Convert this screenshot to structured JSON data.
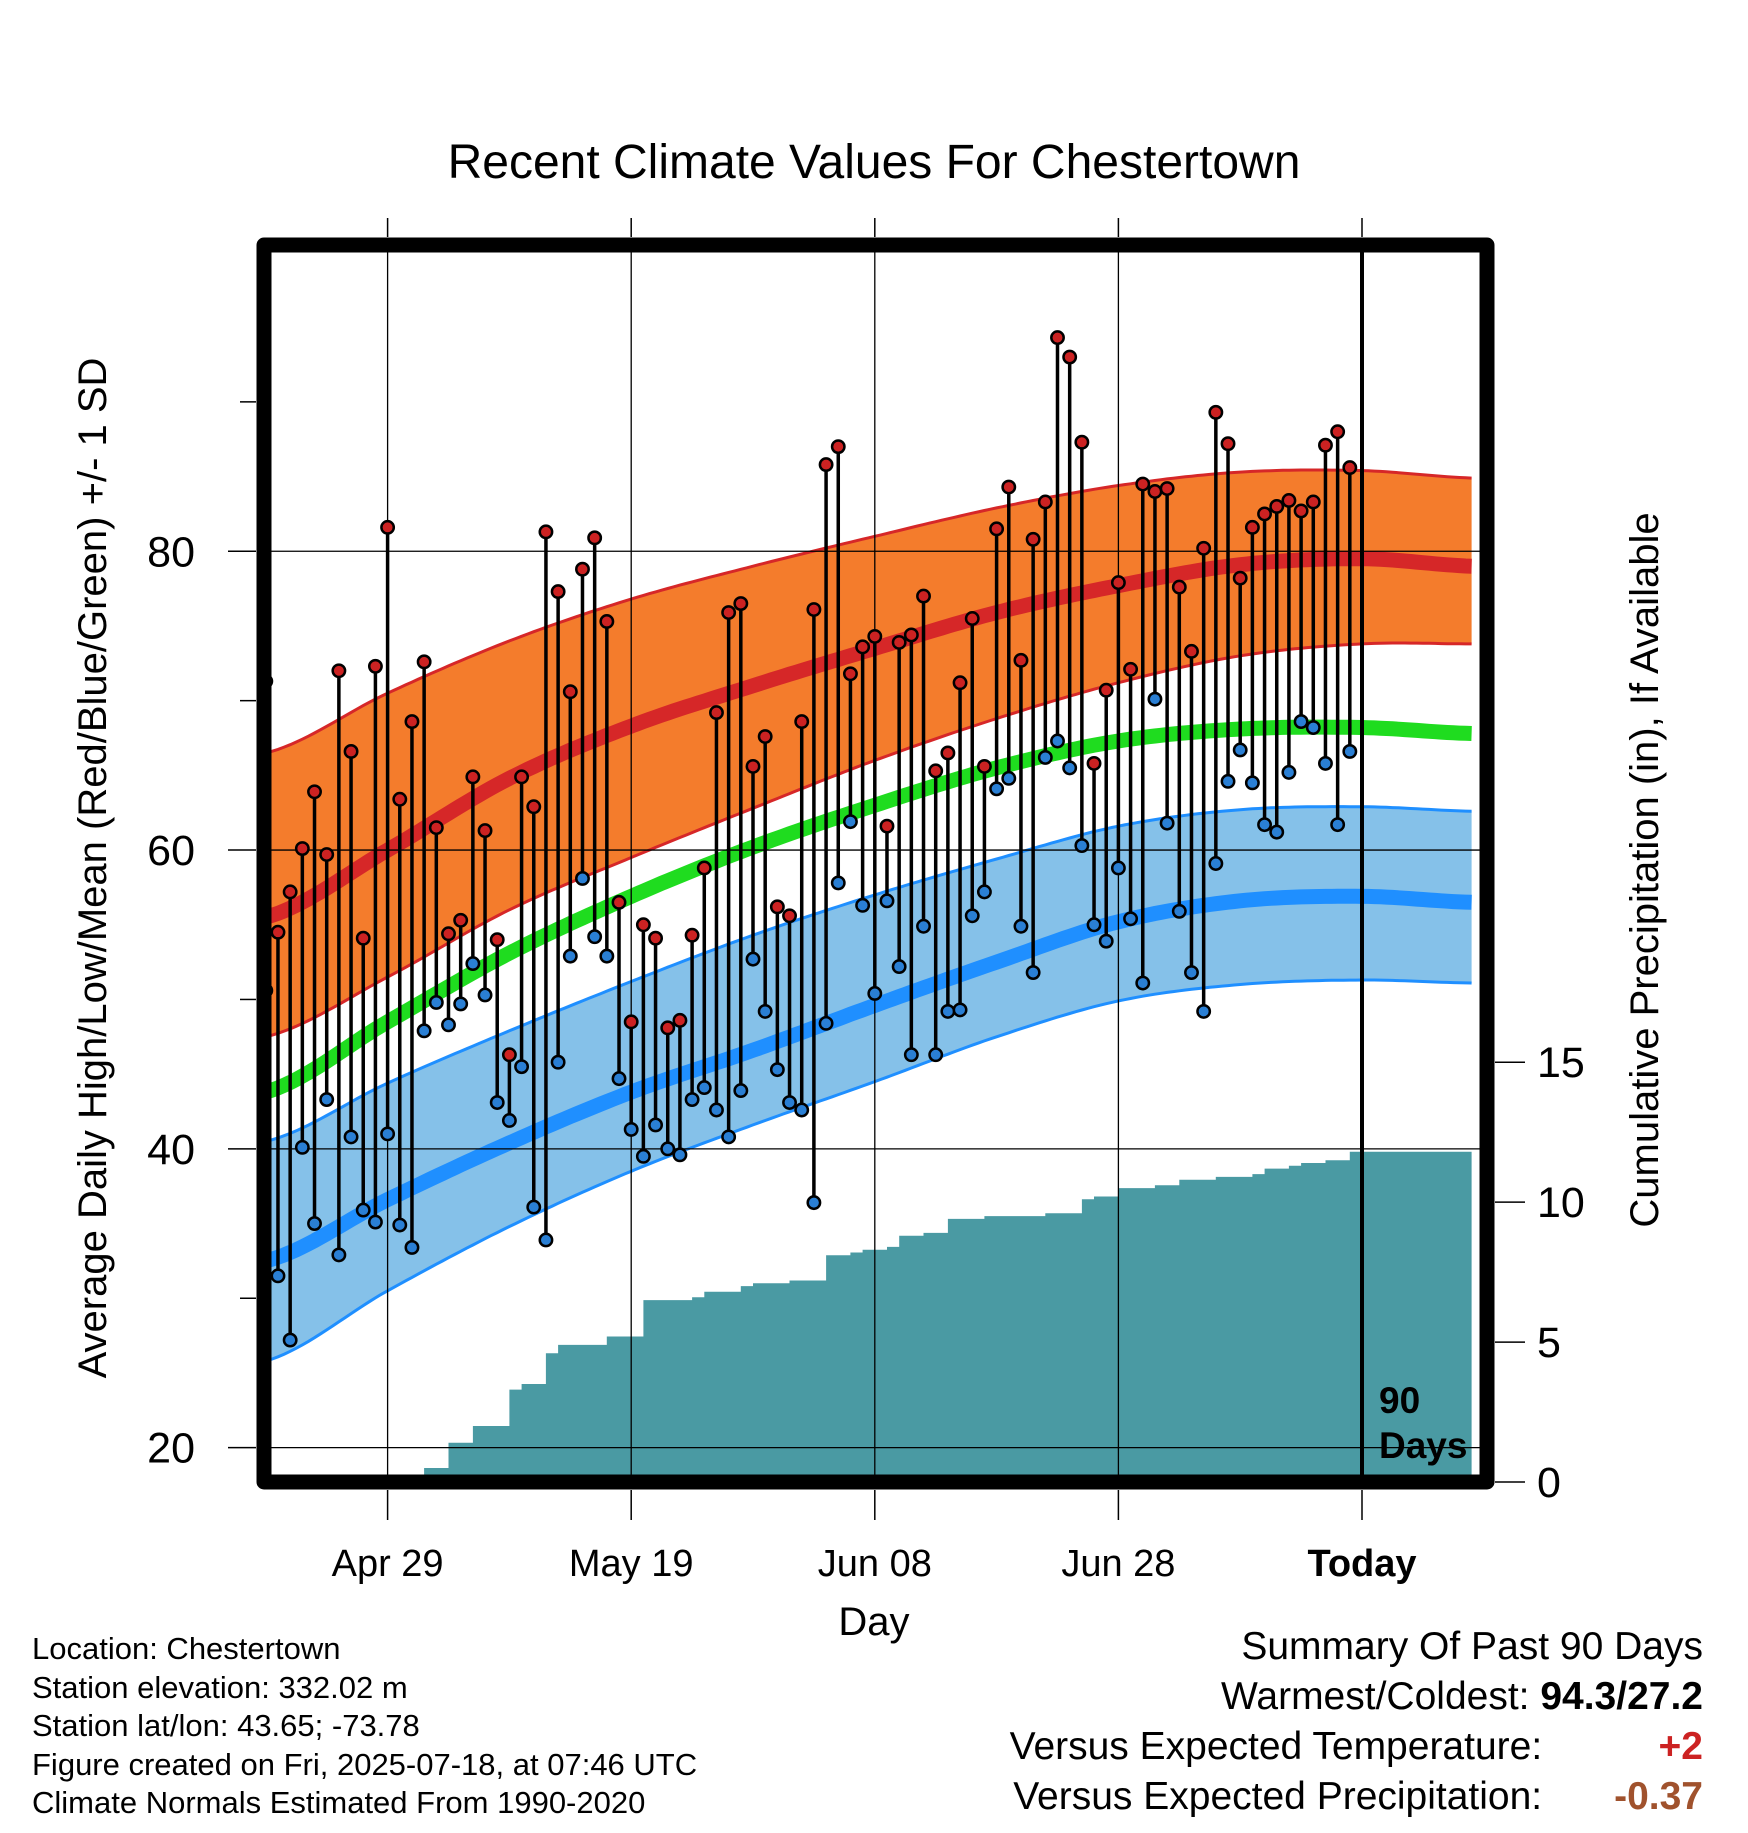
{
  "chart_data": {
    "type": "line",
    "title": "Recent Climate Values For Chestertown",
    "xlabel": "Day",
    "ylabel": "Average Daily High/Low/Mean (Red/Blue/Green) +/- 1 SD",
    "y2label": "Cumulative Precipitation (in), If Available",
    "x_tick_labels": [
      "Apr 29",
      "May 19",
      "Jun 08",
      "Jun 28",
      "Today"
    ],
    "y_ticks": [
      20,
      40,
      60,
      80
    ],
    "y2_ticks": [
      0,
      5,
      10,
      15
    ],
    "ylim": [
      17.7,
      100.5
    ],
    "y2lim": [
      0,
      44.2
    ],
    "days_range": [
      -90,
      9
    ],
    "x_tick_days": [
      -80,
      -60,
      -40,
      -20,
      0
    ],
    "today_marker_label": [
      "90",
      "Days"
    ],
    "grid": true,
    "normals": {
      "days": [
        -90,
        -80,
        -70,
        -60,
        -50,
        -40,
        -30,
        -20,
        -10,
        0,
        9
      ],
      "high_mean": [
        55.5,
        60.0,
        64.8,
        68.3,
        71.0,
        73.5,
        75.9,
        77.7,
        79.1,
        79.5,
        79.0
      ],
      "high_upper": [
        66.5,
        70.5,
        74.0,
        76.8,
        79.0,
        81.0,
        82.9,
        84.4,
        85.3,
        85.4,
        84.9
      ],
      "high_lower": [
        47.5,
        51.5,
        56.0,
        59.5,
        62.8,
        66.0,
        68.8,
        71.2,
        73.0,
        73.8,
        73.8
      ],
      "mean": [
        43.8,
        48.5,
        53.1,
        56.9,
        60.2,
        63.0,
        65.5,
        67.3,
        68.1,
        68.2,
        67.8
      ],
      "low_mean": [
        32.5,
        36.6,
        40.4,
        43.8,
        46.6,
        49.6,
        52.5,
        55.2,
        56.6,
        56.9,
        56.5
      ],
      "low_upper": [
        40.5,
        44.4,
        47.9,
        51.2,
        54.3,
        57.0,
        59.4,
        61.6,
        62.7,
        62.9,
        62.6
      ],
      "low_lower": [
        25.8,
        30.5,
        34.8,
        38.5,
        41.6,
        44.5,
        47.5,
        49.9,
        51.0,
        51.3,
        51.1
      ]
    },
    "daily_high": [
      71.3,
      54.5,
      57.2,
      60.1,
      63.9,
      59.7,
      72.0,
      66.6,
      54.1,
      72.3,
      81.6,
      63.4,
      68.6,
      72.6,
      61.5,
      54.4,
      55.3,
      64.9,
      61.3,
      54.0,
      46.3,
      64.9,
      62.9,
      81.3,
      77.3,
      70.6,
      78.8,
      80.9,
      75.3,
      56.5,
      48.5,
      55.0,
      54.1,
      48.1,
      48.6,
      54.3,
      58.8,
      69.2,
      75.9,
      76.5,
      65.6,
      67.6,
      56.2,
      55.6,
      68.6,
      76.1,
      85.8,
      87.0,
      71.8,
      73.6,
      74.3,
      61.6,
      73.9,
      74.4,
      77.0,
      65.3,
      66.5,
      71.2,
      75.5,
      65.6,
      81.5,
      84.3,
      72.7,
      80.8,
      83.3,
      94.3,
      93.0,
      87.3,
      65.8,
      70.7,
      77.9,
      72.1,
      84.5,
      84.0,
      84.2,
      77.6,
      73.3,
      80.2,
      89.3,
      87.2,
      78.2,
      81.6,
      82.5,
      83.0,
      83.4,
      82.7,
      83.3,
      87.1,
      88.0,
      85.6
    ],
    "daily_low": [
      50.6,
      31.5,
      27.2,
      40.1,
      35.0,
      43.3,
      32.9,
      40.8,
      35.9,
      35.1,
      41.0,
      34.9,
      33.4,
      47.9,
      49.8,
      48.3,
      49.7,
      52.4,
      50.3,
      43.1,
      41.9,
      45.5,
      36.1,
      33.9,
      45.8,
      52.9,
      58.1,
      54.2,
      52.9,
      44.7,
      41.3,
      39.5,
      41.6,
      40.0,
      39.6,
      43.3,
      44.1,
      42.6,
      40.8,
      43.9,
      52.7,
      49.2,
      45.3,
      43.1,
      42.6,
      36.4,
      48.4,
      57.8,
      61.9,
      56.3,
      50.4,
      56.6,
      52.2,
      46.3,
      54.9,
      46.3,
      49.2,
      49.3,
      55.6,
      57.2,
      64.1,
      64.8,
      54.9,
      51.8,
      66.2,
      67.3,
      65.5,
      60.3,
      55.0,
      53.9,
      58.8,
      55.4,
      51.1,
      70.1,
      61.8,
      55.9,
      51.8,
      49.2,
      59.1,
      64.6,
      66.7,
      64.5,
      61.7,
      61.2,
      65.2,
      68.6,
      68.2,
      65.8,
      61.7,
      66.6
    ],
    "cumulative_precip": {
      "days": [
        -83,
        -81,
        -77,
        -75,
        -73,
        -70,
        -69,
        -67,
        -66,
        -64,
        -62,
        -60,
        -59,
        -55,
        -54,
        -51,
        -50,
        -48,
        -47,
        -45,
        -44,
        -42,
        -41,
        -39,
        -38,
        -36,
        -34,
        -32,
        -31,
        -29,
        -27,
        -26,
        -25,
        -23,
        -22,
        -20,
        -18,
        -17,
        -15,
        -12,
        -11,
        -9,
        -8,
        -6,
        -5,
        -3,
        -1,
        9
      ],
      "values": [
        0.0,
        0.2,
        0.5,
        1.4,
        2.0,
        3.3,
        3.5,
        4.6,
        4.9,
        4.9,
        5.2,
        5.2,
        6.5,
        6.6,
        6.8,
        7.0,
        7.1,
        7.1,
        7.2,
        7.2,
        8.1,
        8.2,
        8.3,
        8.4,
        8.8,
        8.9,
        9.4,
        9.4,
        9.5,
        9.5,
        9.5,
        9.6,
        9.6,
        10.1,
        10.2,
        10.5,
        10.5,
        10.6,
        10.8,
        10.9,
        10.9,
        11.0,
        11.2,
        11.3,
        11.4,
        11.5,
        11.8,
        11.8
      ]
    },
    "colors": {
      "high_band": "#f47c2c",
      "high_line": "#d62728",
      "low_band": "#85c1e9",
      "low_line": "#1f8fff",
      "mean_line": "#1fdc1f",
      "precip_fill": "#4a9aa3",
      "high_dot": "#cc2222",
      "low_dot": "#2a7fd4"
    }
  },
  "station_info": {
    "location": "Location: Chestertown",
    "elevation": "Station elevation: 332.02 m",
    "latlon": "Station lat/lon: 43.65; -73.78",
    "created": "Figure created on Fri, 2025-07-18, at 07:46 UTC",
    "normals": "Climate Normals Estimated From 1990-2020"
  },
  "summary": {
    "title": "Summary Of Past 90 Days",
    "warmest_coldest_label": "Warmest/Coldest:",
    "warmest_coldest_value": "94.3/27.2",
    "temp_label": "Versus Expected Temperature:",
    "temp_value": "+2",
    "precip_label": "Versus Expected Precipitation:",
    "precip_value": "-0.37"
  }
}
